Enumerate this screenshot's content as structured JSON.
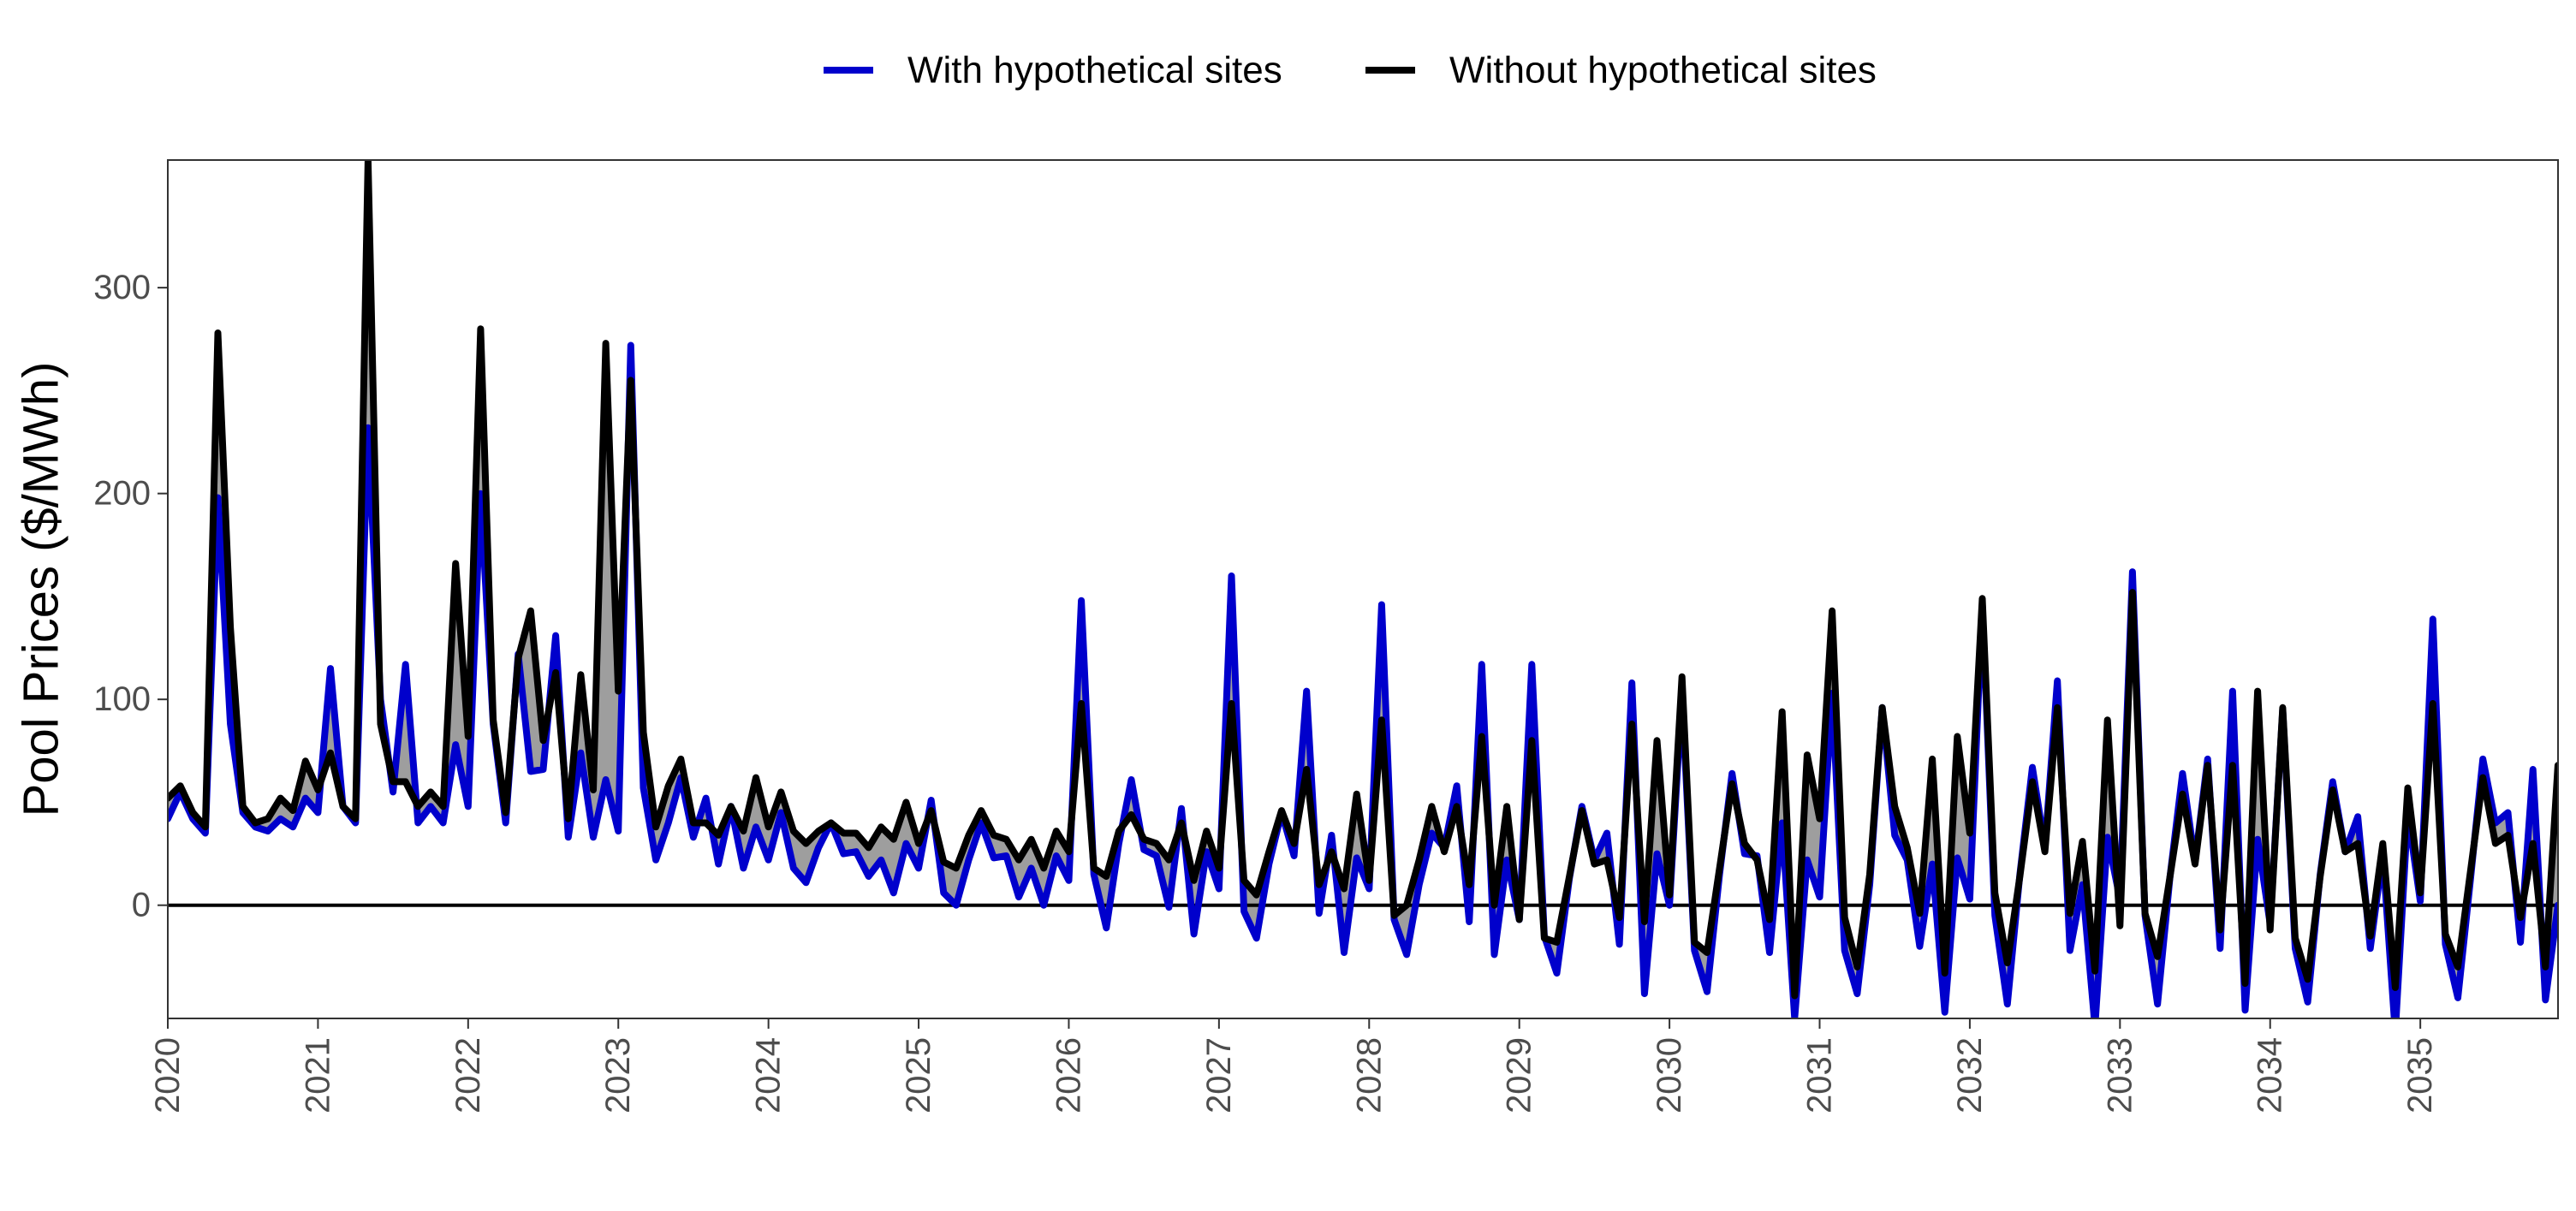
{
  "chart_data": {
    "type": "line",
    "ylabel": "Pool Prices ($/MWh)",
    "xlabel": "",
    "ylim": [
      -55,
      362
    ],
    "xlim": [
      2020,
      2035.917
    ],
    "y_ticks": [
      0,
      100,
      200,
      300
    ],
    "x_ticks": [
      "2020",
      "2021",
      "2022",
      "2023",
      "2024",
      "2025",
      "2026",
      "2027",
      "2028",
      "2029",
      "2030",
      "2031",
      "2032",
      "2033",
      "2034",
      "2035"
    ],
    "grid": false,
    "zero_line": true,
    "fill_between_series": true,
    "fill_color": "#9e9e9e",
    "legend_position": "top",
    "x_start": 2020,
    "x_step_months": 1,
    "series": [
      {
        "name": "With hypothetical sites",
        "color": "#0000cc",
        "values": [
          42,
          55,
          42,
          35,
          198,
          88,
          45,
          38,
          36,
          42,
          38,
          52,
          45,
          115,
          48,
          40,
          232,
          100,
          55,
          117,
          40,
          48,
          40,
          78,
          48,
          200,
          88,
          40,
          122,
          65,
          66,
          131,
          33,
          74,
          33,
          61,
          36,
          272,
          57,
          22,
          40,
          62,
          33,
          52,
          20,
          48,
          18,
          38,
          22,
          45,
          18,
          11,
          28,
          40,
          25,
          26,
          14,
          22,
          6,
          30,
          18,
          51,
          6,
          0,
          22,
          40,
          23,
          24,
          4,
          18,
          0,
          24,
          12,
          148,
          15,
          -11,
          30,
          61,
          27,
          24,
          -1,
          47,
          -14,
          26,
          8,
          160,
          -3,
          -16,
          20,
          45,
          24,
          104,
          -4,
          34,
          -23,
          23,
          8,
          146,
          -7,
          -24,
          10,
          35,
          28,
          58,
          -8,
          117,
          -24,
          22,
          -7,
          117,
          -15,
          -33,
          13,
          48,
          22,
          35,
          -19,
          108,
          -43,
          25,
          0,
          103,
          -22,
          -42,
          15,
          64,
          25,
          24,
          -23,
          40,
          -55,
          22,
          4,
          103,
          -22,
          -43,
          10,
          96,
          34,
          22,
          -20,
          20,
          -52,
          23,
          3,
          146,
          -5,
          -48,
          15,
          67,
          28,
          109,
          -22,
          10,
          -59,
          33,
          3,
          162,
          -5,
          -48,
          14,
          64,
          21,
          71,
          -21,
          104,
          -51,
          32,
          -9,
          95,
          -21,
          -47,
          15,
          60,
          26,
          43,
          -21,
          25,
          -62,
          45,
          2,
          139,
          -19,
          -45,
          12,
          71,
          40,
          45,
          -18,
          66,
          -46,
          0
        ]
      },
      {
        "name": "Without hypothetical sites",
        "color": "#000000",
        "values": [
          52,
          58,
          45,
          38,
          278,
          135,
          48,
          40,
          42,
          52,
          46,
          70,
          56,
          74,
          48,
          42,
          362,
          88,
          60,
          60,
          48,
          55,
          48,
          166,
          82,
          280,
          90,
          45,
          120,
          143,
          80,
          113,
          42,
          112,
          56,
          273,
          104,
          255,
          84,
          38,
          58,
          71,
          40,
          40,
          34,
          48,
          36,
          62,
          38,
          55,
          36,
          30,
          36,
          40,
          35,
          35,
          28,
          38,
          32,
          50,
          30,
          46,
          21,
          18,
          34,
          46,
          34,
          32,
          22,
          32,
          18,
          36,
          26,
          98,
          18,
          14,
          36,
          44,
          32,
          30,
          22,
          40,
          12,
          36,
          18,
          98,
          12,
          5,
          26,
          46,
          30,
          66,
          10,
          26,
          8,
          54,
          12,
          90,
          -5,
          0,
          22,
          48,
          26,
          48,
          10,
          82,
          0,
          48,
          -7,
          80,
          -16,
          -18,
          14,
          46,
          20,
          22,
          -6,
          88,
          -8,
          80,
          5,
          111,
          -18,
          -23,
          18,
          59,
          30,
          22,
          -7,
          94,
          -44,
          73,
          42,
          143,
          -6,
          -30,
          15,
          96,
          48,
          28,
          -4,
          71,
          -33,
          82,
          35,
          149,
          6,
          -28,
          14,
          60,
          26,
          96,
          -4,
          31,
          -32,
          90,
          -10,
          152,
          -4,
          -25,
          14,
          54,
          20,
          68,
          -12,
          68,
          -38,
          104,
          -12,
          96,
          -16,
          -36,
          14,
          56,
          26,
          30,
          -15,
          30,
          -40,
          57,
          6,
          98,
          -14,
          -30,
          16,
          62,
          30,
          34,
          -6,
          30,
          -30,
          68
        ]
      }
    ]
  }
}
